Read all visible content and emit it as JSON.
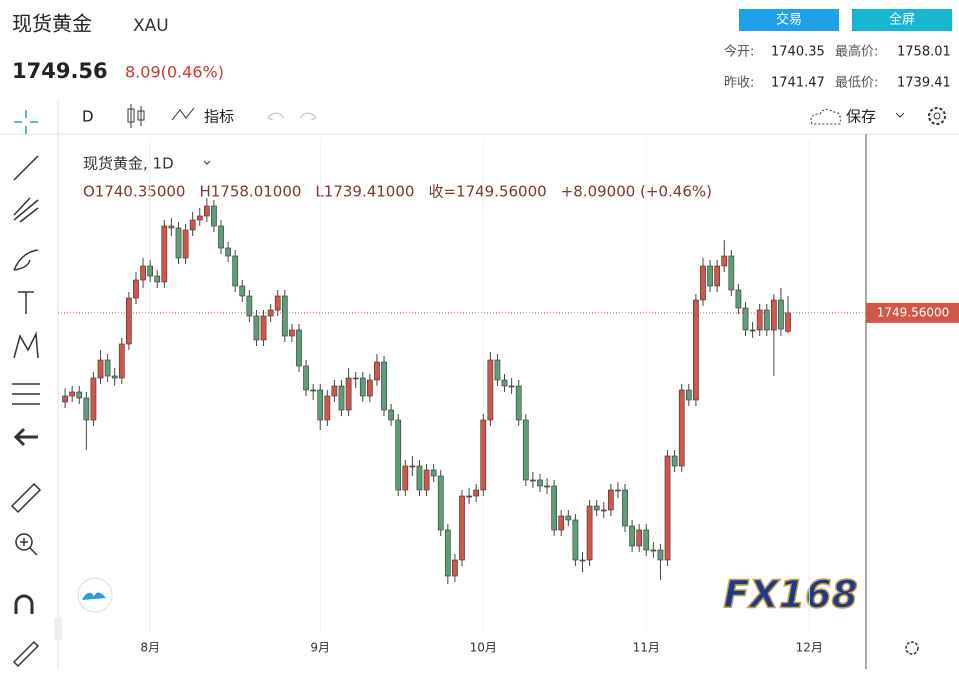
{
  "header": {
    "title": "现货黄金",
    "symbol": "XAU",
    "price": "1749.56",
    "change": "8.09(0.46%)",
    "buttons": [
      "交易",
      "全屏"
    ],
    "stats": [
      {
        "label": "今开:",
        "value": "1740.35"
      },
      {
        "label": "最高价:",
        "value": "1758.01"
      },
      {
        "label": "昨收:",
        "value": "1741.47"
      },
      {
        "label": "最低价:",
        "value": "1739.41"
      }
    ]
  },
  "toolbar": {
    "interval": "D",
    "indicators": "指标",
    "save": "保存"
  },
  "chart_data": {
    "type": "candlestick",
    "legend_title": "现货黄金, 1D",
    "ohlc_text": [
      "O1740.35000",
      "H1758.01000",
      "L1739.41000",
      "收=1749.56000",
      "+8.09000 (+0.46%)"
    ],
    "up_color": "#d0574a",
    "down_color": "#5f9f78",
    "candles": [
      [
        1705,
        1712,
        1702,
        1708
      ],
      [
        1708,
        1713,
        1705,
        1710
      ],
      [
        1710,
        1713,
        1704,
        1707
      ],
      [
        1707,
        1710,
        1681,
        1696
      ],
      [
        1696,
        1720,
        1693,
        1717
      ],
      [
        1717,
        1731,
        1714,
        1726
      ],
      [
        1726,
        1729,
        1715,
        1718
      ],
      [
        1718,
        1722,
        1713,
        1717
      ],
      [
        1717,
        1737,
        1714,
        1734
      ],
      [
        1734,
        1760,
        1731,
        1757
      ],
      [
        1757,
        1770,
        1754,
        1766
      ],
      [
        1766,
        1777,
        1762,
        1773
      ],
      [
        1773,
        1776,
        1765,
        1768
      ],
      [
        1768,
        1771,
        1762,
        1765
      ],
      [
        1765,
        1796,
        1762,
        1793
      ],
      [
        1793,
        1797,
        1788,
        1792
      ],
      [
        1792,
        1795,
        1774,
        1777
      ],
      [
        1777,
        1794,
        1774,
        1791
      ],
      [
        1791,
        1800,
        1788,
        1796
      ],
      [
        1796,
        1802,
        1793,
        1798
      ],
      [
        1798,
        1807,
        1795,
        1803
      ],
      [
        1803,
        1806,
        1790,
        1793
      ],
      [
        1793,
        1796,
        1779,
        1782
      ],
      [
        1782,
        1785,
        1775,
        1778
      ],
      [
        1778,
        1781,
        1760,
        1763
      ],
      [
        1763,
        1766,
        1755,
        1758
      ],
      [
        1758,
        1761,
        1745,
        1748
      ],
      [
        1748,
        1751,
        1733,
        1736
      ],
      [
        1736,
        1751,
        1733,
        1748
      ],
      [
        1748,
        1754,
        1745,
        1751
      ],
      [
        1751,
        1761,
        1748,
        1758
      ],
      [
        1758,
        1761,
        1735,
        1738
      ],
      [
        1738,
        1744,
        1735,
        1741
      ],
      [
        1741,
        1744,
        1720,
        1723
      ],
      [
        1723,
        1726,
        1708,
        1711
      ],
      [
        1711,
        1714,
        1706,
        1711
      ],
      [
        1711,
        1714,
        1691,
        1696
      ],
      [
        1696,
        1711,
        1693,
        1708
      ],
      [
        1708,
        1716,
        1705,
        1713
      ],
      [
        1713,
        1716,
        1698,
        1701
      ],
      [
        1701,
        1722,
        1698,
        1717
      ],
      [
        1717,
        1720,
        1712,
        1717
      ],
      [
        1717,
        1720,
        1705,
        1708
      ],
      [
        1708,
        1719,
        1705,
        1716
      ],
      [
        1716,
        1729,
        1713,
        1725
      ],
      [
        1725,
        1728,
        1698,
        1701
      ],
      [
        1701,
        1704,
        1693,
        1696
      ],
      [
        1696,
        1699,
        1658,
        1661
      ],
      [
        1661,
        1676,
        1658,
        1673
      ],
      [
        1673,
        1678,
        1668,
        1673
      ],
      [
        1673,
        1676,
        1658,
        1661
      ],
      [
        1661,
        1674,
        1658,
        1671
      ],
      [
        1671,
        1674,
        1665,
        1668
      ],
      [
        1668,
        1671,
        1638,
        1641
      ],
      [
        1641,
        1644,
        1614,
        1618
      ],
      [
        1618,
        1629,
        1615,
        1626
      ],
      [
        1626,
        1661,
        1623,
        1658
      ],
      [
        1658,
        1662,
        1654,
        1658
      ],
      [
        1658,
        1664,
        1655,
        1661
      ],
      [
        1661,
        1699,
        1658,
        1696
      ],
      [
        1696,
        1730,
        1693,
        1726
      ],
      [
        1726,
        1729,
        1713,
        1716
      ],
      [
        1716,
        1719,
        1710,
        1713
      ],
      [
        1713,
        1717,
        1709,
        1713
      ],
      [
        1713,
        1716,
        1693,
        1696
      ],
      [
        1696,
        1699,
        1663,
        1666
      ],
      [
        1666,
        1670,
        1662,
        1666
      ],
      [
        1666,
        1669,
        1660,
        1663
      ],
      [
        1663,
        1667,
        1659,
        1663
      ],
      [
        1663,
        1666,
        1638,
        1641
      ],
      [
        1641,
        1651,
        1638,
        1648
      ],
      [
        1648,
        1651,
        1643,
        1646
      ],
      [
        1646,
        1649,
        1623,
        1626
      ],
      [
        1626,
        1630,
        1620,
        1626
      ],
      [
        1626,
        1656,
        1623,
        1653
      ],
      [
        1653,
        1656,
        1648,
        1651
      ],
      [
        1651,
        1655,
        1647,
        1651
      ],
      [
        1651,
        1664,
        1648,
        1661
      ],
      [
        1661,
        1665,
        1657,
        1661
      ],
      [
        1661,
        1664,
        1640,
        1643
      ],
      [
        1643,
        1646,
        1630,
        1633
      ],
      [
        1633,
        1644,
        1630,
        1641
      ],
      [
        1641,
        1644,
        1628,
        1631
      ],
      [
        1631,
        1635,
        1627,
        1631
      ],
      [
        1631,
        1634,
        1616,
        1626
      ],
      [
        1626,
        1681,
        1623,
        1678
      ],
      [
        1678,
        1681,
        1670,
        1673
      ],
      [
        1673,
        1714,
        1670,
        1711
      ],
      [
        1711,
        1714,
        1703,
        1706
      ],
      [
        1706,
        1759,
        1703,
        1756
      ],
      [
        1756,
        1777,
        1753,
        1773
      ],
      [
        1773,
        1776,
        1760,
        1763
      ],
      [
        1763,
        1776,
        1760,
        1773
      ],
      [
        1773,
        1786,
        1770,
        1778
      ],
      [
        1778,
        1781,
        1758,
        1761
      ],
      [
        1761,
        1764,
        1749,
        1752
      ],
      [
        1752,
        1755,
        1738,
        1741
      ],
      [
        1741,
        1745,
        1737,
        1741
      ],
      [
        1741,
        1754,
        1738,
        1751
      ],
      [
        1751,
        1754,
        1738,
        1741
      ],
      [
        1741,
        1759,
        1718,
        1756
      ],
      [
        1756,
        1762,
        1738,
        1741.47
      ],
      [
        1740.35,
        1758.01,
        1739.41,
        1749.56
      ]
    ],
    "xlim": [
      -1,
      113
    ],
    "ylim": [
      1590,
      1836
    ],
    "xticks": [
      {
        "value": 12,
        "label": "8月"
      },
      {
        "value": 36,
        "label": "9月"
      },
      {
        "value": 59,
        "label": "10月"
      },
      {
        "value": 82,
        "label": "11月"
      },
      {
        "value": 105,
        "label": "12月"
      }
    ],
    "last_price_label": "1749.56000"
  },
  "watermark": "FX168"
}
